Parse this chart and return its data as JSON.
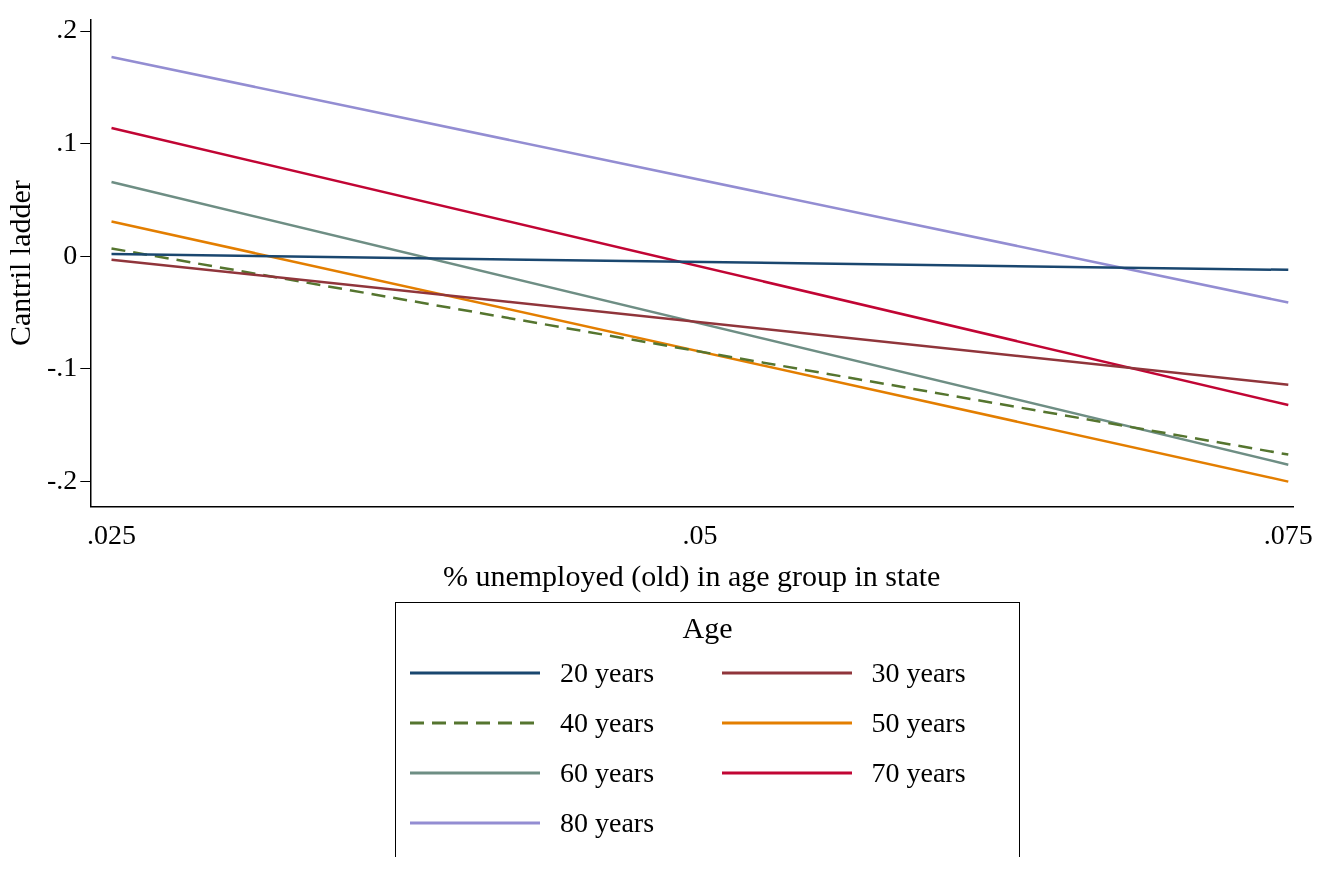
{
  "chart_data": {
    "type": "line",
    "xlabel": "% unemployed (old) in age group in state",
    "ylabel": "Cantril ladder",
    "legend_title": "Age",
    "legend": "bottom",
    "grid": false,
    "marker": "none",
    "x": [
      0.025,
      0.075
    ],
    "xlim": [
      0.0241,
      0.0752
    ],
    "xticks": [
      {
        "value": 0.025,
        "label": ".025"
      },
      {
        "value": 0.05,
        "label": ".05"
      },
      {
        "value": 0.075,
        "label": ".075"
      }
    ],
    "ylim": [
      -0.222,
      0.21
    ],
    "yticks": [
      {
        "value": -0.2,
        "label": "-.2"
      },
      {
        "value": -0.1,
        "label": "-.1"
      },
      {
        "value": 0,
        "label": "0"
      },
      {
        "value": 0.1,
        "label": ".1"
      },
      {
        "value": 0.2,
        "label": ".2"
      }
    ],
    "series": [
      {
        "name": "20 years",
        "color": "#1a476f",
        "values": [
          0.002,
          -0.012
        ]
      },
      {
        "name": "30 years",
        "color": "#90353b",
        "values": [
          -0.003,
          -0.114
        ]
      },
      {
        "name": "40 years",
        "color": "#55752f",
        "values": [
          0.007,
          -0.176
        ],
        "line_style": "dashed"
      },
      {
        "name": "50 years",
        "color": "#e37e00",
        "values": [
          0.031,
          -0.2
        ]
      },
      {
        "name": "60 years",
        "color": "#6e8e84",
        "values": [
          0.066,
          -0.185
        ]
      },
      {
        "name": "70 years",
        "color": "#c10534",
        "values": [
          0.114,
          -0.132
        ]
      },
      {
        "name": "80 years",
        "color": "#938dd2",
        "values": [
          0.177,
          -0.041
        ]
      }
    ]
  }
}
